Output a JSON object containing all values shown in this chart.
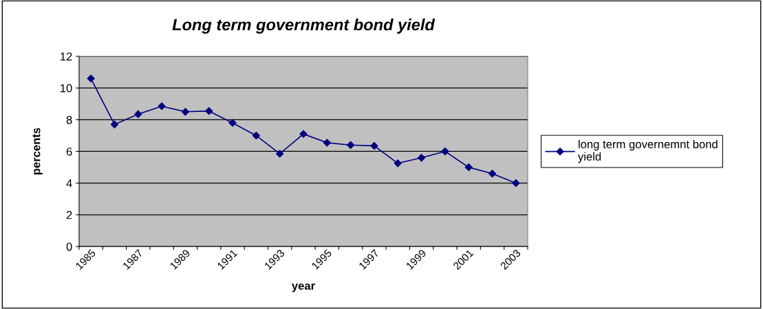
{
  "chart_data": {
    "type": "line",
    "title": "Long term government bond yield",
    "xlabel": "year",
    "ylabel": "percents",
    "categories": [
      "1985",
      null,
      "1987",
      null,
      "1989",
      null,
      "1991",
      null,
      "1993",
      null,
      "1995",
      null,
      "1997",
      null,
      "1999",
      null,
      "2001",
      null,
      "2003"
    ],
    "series": [
      {
        "name": "long term governemnt bond yield",
        "color": "#000080",
        "values": [
          10.6,
          7.7,
          8.35,
          8.85,
          8.5,
          8.55,
          7.8,
          7.0,
          5.85,
          7.1,
          6.55,
          6.4,
          6.35,
          5.25,
          5.6,
          6.0,
          5.0,
          4.6,
          4.0
        ]
      }
    ],
    "ylim": [
      0,
      12
    ],
    "yticks": [
      0,
      2,
      4,
      6,
      8,
      10,
      12
    ],
    "grid": "y",
    "legend": "right",
    "marker": "diamond",
    "line_style": "solid"
  }
}
